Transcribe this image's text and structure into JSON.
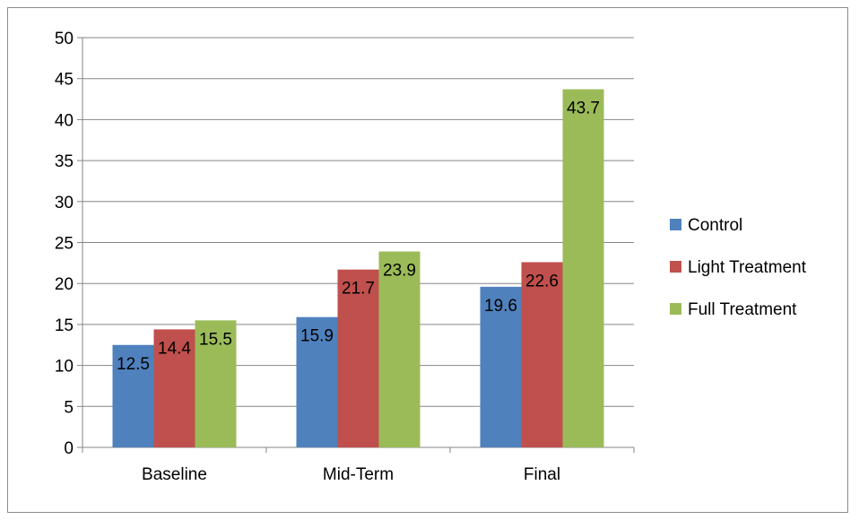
{
  "chart_data": {
    "type": "bar",
    "title": "",
    "xlabel": "",
    "ylabel": "",
    "categories": [
      "Baseline",
      "Mid-Term",
      "Final"
    ],
    "series": [
      {
        "name": "Control",
        "values": [
          12.5,
          15.9,
          19.6
        ],
        "color": "#4f81bd"
      },
      {
        "name": "Light Treatment",
        "values": [
          14.4,
          21.7,
          22.6
        ],
        "color": "#c0504d"
      },
      {
        "name": "Full Treatment",
        "values": [
          15.5,
          23.9,
          43.7
        ],
        "color": "#9bbb59"
      }
    ],
    "ylim": [
      0,
      50
    ],
    "yticks": [
      "0",
      "5",
      "10",
      "15",
      "20",
      "25",
      "30",
      "35",
      "40",
      "45",
      "50"
    ],
    "grid": true,
    "legend_position": "right",
    "data_labels": true
  }
}
